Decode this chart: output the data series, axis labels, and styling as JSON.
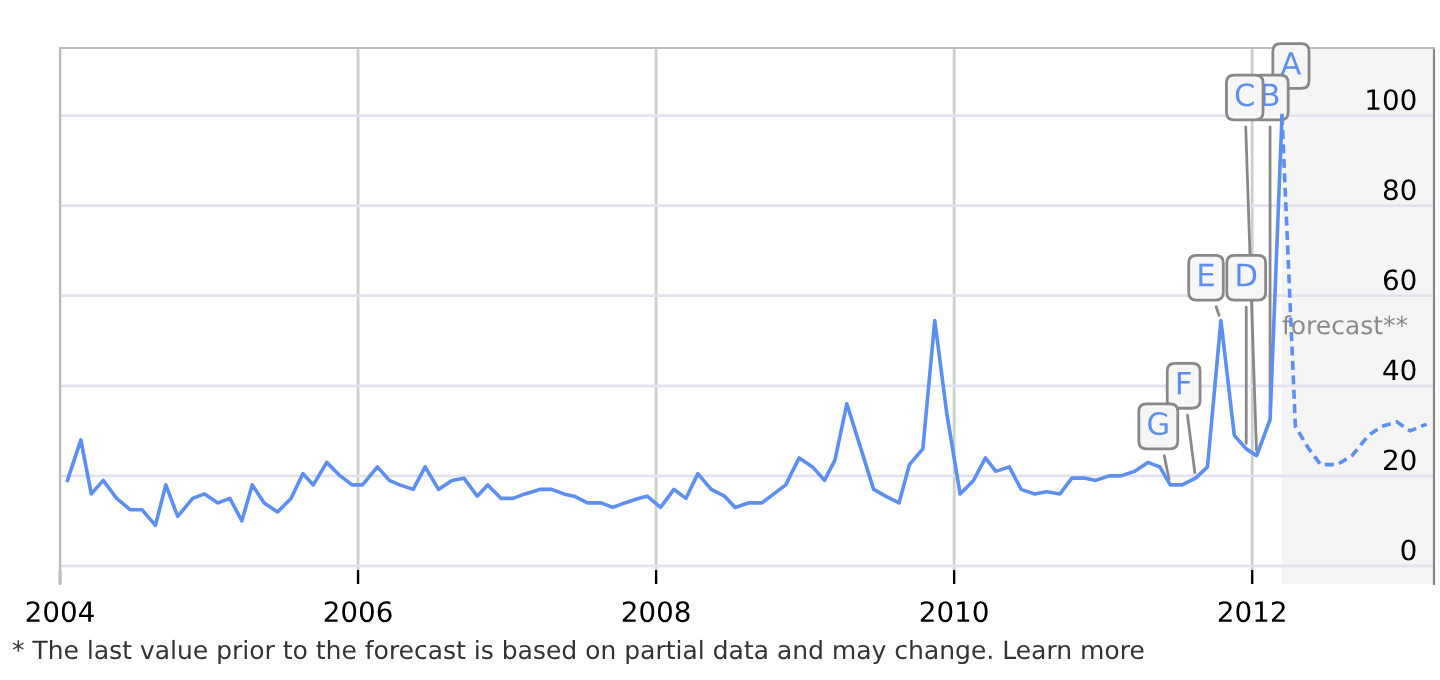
{
  "chart_data": {
    "type": "line",
    "xlim": [
      2004,
      2013.22
    ],
    "xticks": [
      2004,
      2006,
      2008,
      2010,
      2012
    ],
    "ylim": [
      -4,
      115
    ],
    "yticks": [
      0,
      20,
      40,
      60,
      80,
      100
    ],
    "grid": true,
    "marker": "none",
    "series": [
      {
        "color": "#5c8ff0",
        "line_style": "solid",
        "x": [
          2004.05,
          2004.14,
          2004.21,
          2004.29,
          2004.38,
          2004.47,
          2004.55,
          2004.64,
          2004.71,
          2004.79,
          2004.89,
          2004.97,
          2005.06,
          2005.14,
          2005.22,
          2005.29,
          2005.37,
          2005.46,
          2005.55,
          2005.63,
          2005.7,
          2005.79,
          2005.88,
          2005.96,
          2006.03,
          2006.13,
          2006.21,
          2006.28,
          2006.37,
          2006.45,
          2006.54,
          2006.63,
          2006.71,
          2006.8,
          2006.87,
          2006.96,
          2007.04,
          2007.12,
          2007.22,
          2007.3,
          2007.38,
          2007.45,
          2007.54,
          2007.63,
          2007.71,
          2007.79,
          2007.88,
          2007.94,
          2008.03,
          2008.12,
          2008.2,
          2008.28,
          2008.37,
          2008.46,
          2008.53,
          2008.62,
          2008.71,
          2008.79,
          2008.87,
          2008.96,
          2009.05,
          2009.13,
          2009.2,
          2009.28,
          2009.37,
          2009.46,
          2009.54,
          2009.63,
          2009.7,
          2009.79,
          2009.87,
          2009.95,
          2010.04,
          2010.13,
          2010.21,
          2010.28,
          2010.37,
          2010.45,
          2010.54,
          2010.62,
          2010.71,
          2010.79,
          2010.88,
          2010.95,
          2011.04,
          2011.12,
          2011.21,
          2011.3,
          2011.38,
          2011.45,
          2011.53,
          2011.62,
          2011.7,
          2011.79,
          2011.88,
          2011.96,
          2012.03,
          2012.12,
          2012.2
        ],
        "values": [
          19,
          28,
          16,
          19,
          15,
          12.5,
          12.5,
          9,
          18,
          11,
          15,
          16,
          14,
          15,
          10,
          18,
          14,
          12,
          15,
          20.5,
          18,
          23,
          20,
          18,
          18,
          22,
          19,
          18,
          17,
          22,
          17,
          19,
          19.5,
          15.5,
          18,
          15,
          15,
          16,
          17,
          17,
          16,
          15.5,
          14,
          14,
          13,
          14,
          15,
          15.5,
          13,
          17,
          15,
          20.5,
          17,
          15.5,
          13,
          14,
          14,
          16,
          18,
          24,
          22,
          19,
          23.5,
          36,
          26.5,
          17,
          15.5,
          14,
          22.5,
          26,
          54.5,
          34,
          16,
          19,
          24,
          21,
          22,
          17,
          16,
          16.5,
          16,
          19.5,
          19.5,
          19,
          20,
          20,
          21,
          23,
          22,
          18,
          18,
          19.5,
          22,
          54.5,
          29,
          26,
          24.5,
          32.5,
          100
        ]
      },
      {
        "color": "#5c8ff0",
        "line_style": "dashed",
        "x": [
          2012.2,
          2012.29,
          2012.38,
          2012.46,
          2012.57,
          2012.67,
          2012.78,
          2012.87,
          2012.97,
          2013.06,
          2013.17
        ],
        "values": [
          100,
          31,
          26,
          22.5,
          22.5,
          24.5,
          29,
          31,
          32,
          30,
          31.5
        ]
      }
    ],
    "bands": [
      {
        "axis": "x",
        "from": 2012.2,
        "to": 2013.22,
        "label": "forecast**",
        "color": "#f5f5f5"
      }
    ],
    "annotations": [
      {
        "text": "A",
        "x": 2012.2,
        "y": 100
      },
      {
        "text": "B",
        "x": 2012.12,
        "y": 32.5
      },
      {
        "text": "C",
        "x": 2012.03,
        "y": 24.5
      },
      {
        "text": "D",
        "x": 2011.96,
        "y": 26
      },
      {
        "text": "E",
        "x": 2011.79,
        "y": 54.5
      },
      {
        "text": "F",
        "x": 2011.62,
        "y": 19.5
      },
      {
        "text": "G",
        "x": 2011.45,
        "y": 18
      },
      "* The last value prior to the forecast is based on partial data and may change. Learn more"
    ]
  }
}
